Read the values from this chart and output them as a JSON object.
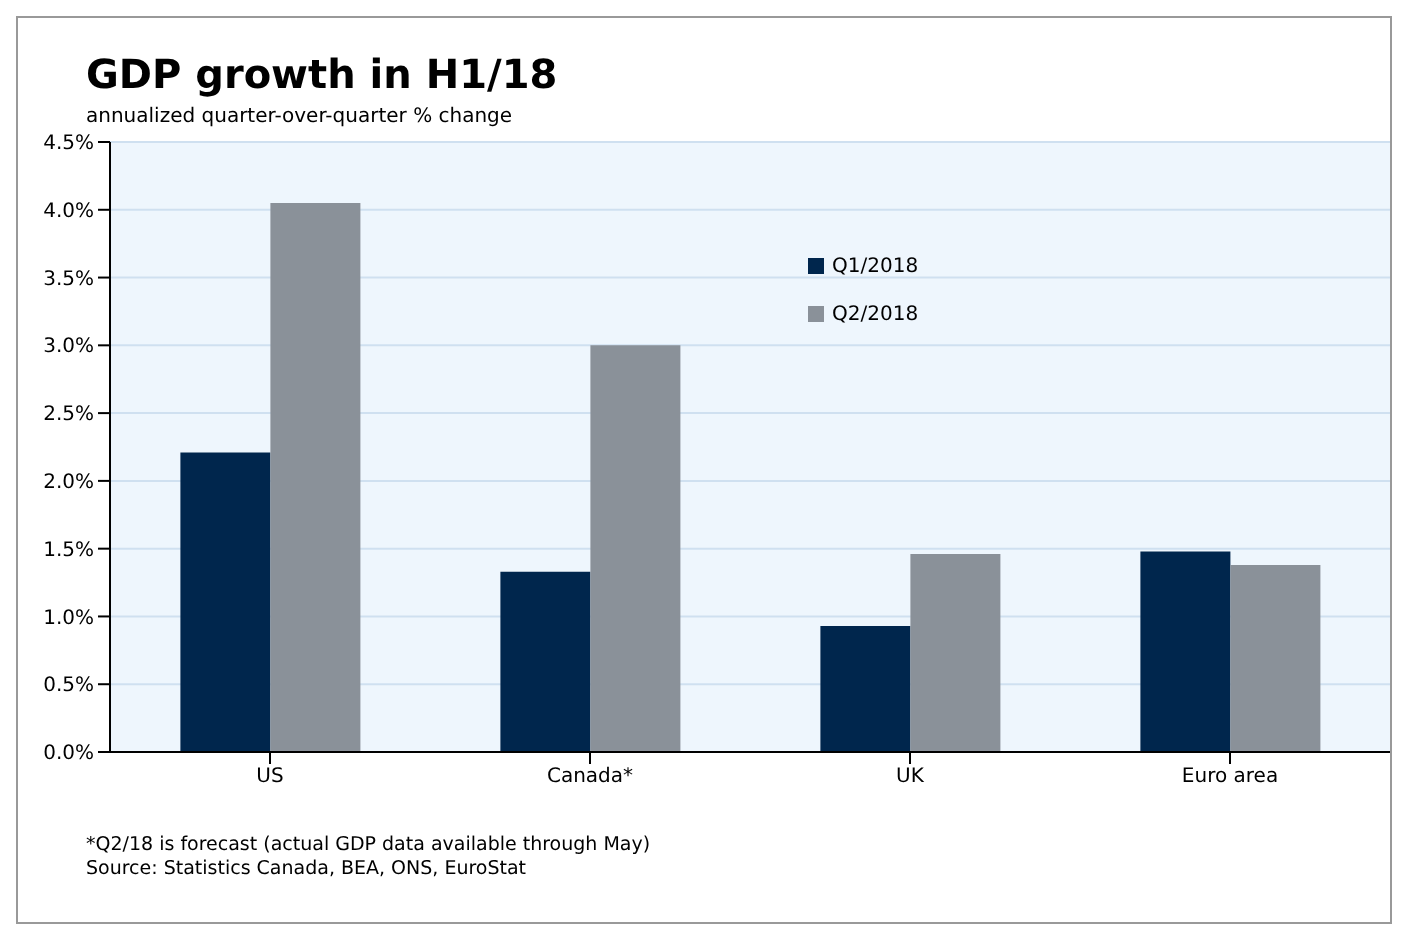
{
  "chart_data": {
    "type": "bar",
    "title": "GDP growth in H1/18",
    "subtitle": "annualized quarter-over-quarter % change",
    "categories": [
      "US",
      "Canada*",
      "UK",
      "Euro area"
    ],
    "series": [
      {
        "name": "Q1/2018",
        "color": "#00264d",
        "values": [
          2.21,
          1.33,
          0.93,
          1.48
        ]
      },
      {
        "name": "Q2/2018",
        "color": "#8a9199",
        "values": [
          4.05,
          3.0,
          1.46,
          1.38
        ]
      }
    ],
    "ylim": [
      0,
      4.5
    ],
    "yticks": [
      {
        "value": 0,
        "label": "0.0%"
      },
      {
        "value": 0.5,
        "label": "0.5%"
      },
      {
        "value": 1,
        "label": "1.0%"
      },
      {
        "value": 1.5,
        "label": "1.5%"
      },
      {
        "value": 2,
        "label": "2.0%"
      },
      {
        "value": 2.5,
        "label": "2.5%"
      },
      {
        "value": 3,
        "label": "3.0%"
      },
      {
        "value": 3.5,
        "label": "3.5%"
      },
      {
        "value": 4,
        "label": "4.0%"
      },
      {
        "value": 4.5,
        "label": "4.5%"
      }
    ],
    "grid": "y",
    "legend": "top",
    "annotations": [
      "*Q2/18 is forecast (actual GDP data available through May)",
      "Source: Statistics Canada, BEA, ONS, EuroStat"
    ]
  }
}
